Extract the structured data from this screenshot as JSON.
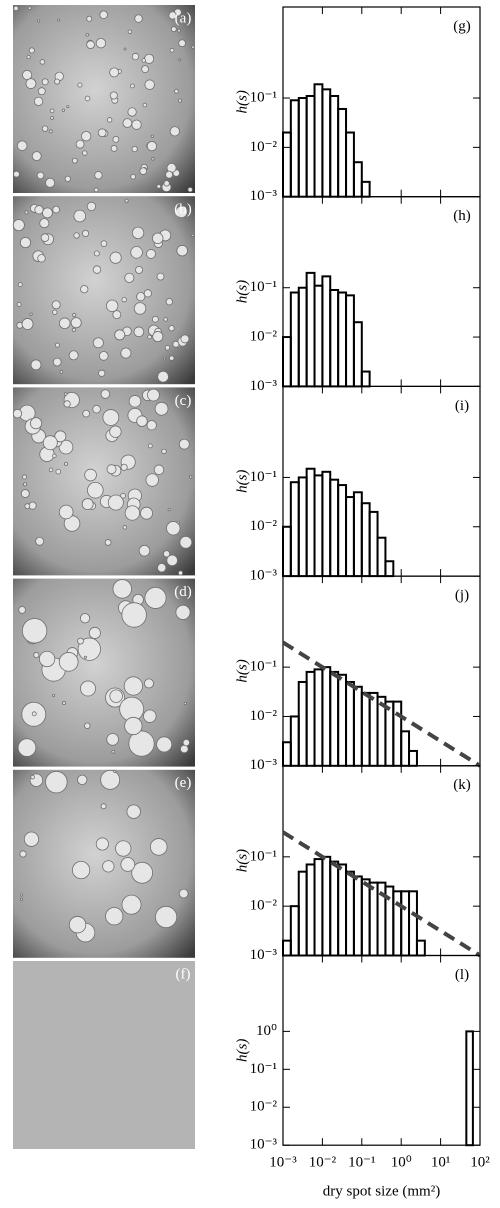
{
  "photos": [
    "(a)",
    "(b)",
    "(c)",
    "(d)",
    "(e)",
    "(f)"
  ],
  "chart_data": [
    {
      "type": "histogram",
      "label": "(g)",
      "ylabel": "h(s)",
      "log_x": true,
      "log_y": true,
      "xlim": [
        0.001,
        100
      ],
      "ylim": [
        0.001,
        7
      ],
      "yticks": [
        {
          "value": 0.001,
          "label": "10⁻³"
        },
        {
          "value": 0.01,
          "label": "10⁻²"
        },
        {
          "value": 0.1,
          "label": "10⁻¹"
        }
      ],
      "bins": [
        0.001,
        0.00158,
        0.00251,
        0.00398,
        0.00631,
        0.01,
        0.0158,
        0.0251,
        0.0398,
        0.0631,
        0.1,
        0.158
      ],
      "values": [
        0.02,
        0.09,
        0.1,
        0.11,
        0.19,
        0.15,
        0.11,
        0.06,
        0.02,
        0.005,
        0.002
      ]
    },
    {
      "type": "histogram",
      "label": "(h)",
      "ylabel": "h(s)",
      "log_x": true,
      "log_y": true,
      "xlim": [
        0.001,
        100
      ],
      "ylim": [
        0.001,
        7
      ],
      "yticks": [
        {
          "value": 0.001,
          "label": "10⁻³"
        },
        {
          "value": 0.01,
          "label": "10⁻²"
        },
        {
          "value": 0.1,
          "label": "10⁻¹"
        }
      ],
      "bins": [
        0.001,
        0.00158,
        0.00251,
        0.00398,
        0.00631,
        0.01,
        0.0158,
        0.0251,
        0.0398,
        0.0631,
        0.1,
        0.158
      ],
      "values": [
        0.01,
        0.08,
        0.1,
        0.2,
        0.11,
        0.17,
        0.09,
        0.08,
        0.07,
        0.02,
        0.002
      ]
    },
    {
      "type": "histogram",
      "label": "(i)",
      "ylabel": "h(s)",
      "log_x": true,
      "log_y": true,
      "xlim": [
        0.001,
        100
      ],
      "ylim": [
        0.001,
        7
      ],
      "yticks": [
        {
          "value": 0.001,
          "label": "10⁻³"
        },
        {
          "value": 0.01,
          "label": "10⁻²"
        },
        {
          "value": 0.1,
          "label": "10⁻¹"
        }
      ],
      "bins": [
        0.001,
        0.00158,
        0.00251,
        0.00398,
        0.00631,
        0.01,
        0.0158,
        0.0251,
        0.0398,
        0.0631,
        0.1,
        0.158,
        0.251,
        0.398,
        0.631
      ],
      "values": [
        0.01,
        0.08,
        0.1,
        0.15,
        0.11,
        0.13,
        0.09,
        0.07,
        0.04,
        0.05,
        0.03,
        0.02,
        0.006,
        0.002
      ]
    },
    {
      "type": "histogram",
      "label": "(j)",
      "ylabel": "h(s)",
      "log_x": true,
      "log_y": true,
      "xlim": [
        0.001,
        100
      ],
      "ylim": [
        0.001,
        7
      ],
      "yticks": [
        {
          "value": 0.001,
          "label": "10⁻³"
        },
        {
          "value": 0.01,
          "label": "10⁻²"
        },
        {
          "value": 0.1,
          "label": "10⁻¹"
        }
      ],
      "bins": [
        0.001,
        0.00158,
        0.00251,
        0.00398,
        0.00631,
        0.01,
        0.0158,
        0.0251,
        0.0398,
        0.0631,
        0.1,
        0.158,
        0.251,
        0.398,
        0.631,
        1,
        1.58,
        2.51
      ],
      "values": [
        0.003,
        0.01,
        0.05,
        0.08,
        0.09,
        0.1,
        0.08,
        0.07,
        0.05,
        0.04,
        0.03,
        0.03,
        0.025,
        0.02,
        0.02,
        0.005,
        0.002
      ],
      "fit": {
        "color": "#444444",
        "x": [
          0.001,
          100
        ],
        "y": [
          0.316,
          0.001
        ]
      }
    },
    {
      "type": "histogram",
      "label": "(k)",
      "ylabel": "h(s)",
      "log_x": true,
      "log_y": true,
      "xlim": [
        0.001,
        100
      ],
      "ylim": [
        0.001,
        7
      ],
      "yticks": [
        {
          "value": 0.001,
          "label": "10⁻³"
        },
        {
          "value": 0.01,
          "label": "10⁻²"
        },
        {
          "value": 0.1,
          "label": "10⁻¹"
        }
      ],
      "bins": [
        0.001,
        0.00158,
        0.00251,
        0.00398,
        0.00631,
        0.01,
        0.0158,
        0.0251,
        0.0398,
        0.0631,
        0.1,
        0.158,
        0.251,
        0.398,
        0.631,
        1,
        1.58,
        2.51,
        3.98
      ],
      "values": [
        0.002,
        0.01,
        0.05,
        0.07,
        0.09,
        0.1,
        0.08,
        0.07,
        0.05,
        0.04,
        0.035,
        0.03,
        0.03,
        0.025,
        0.02,
        0.02,
        0.02,
        0.002
      ],
      "fit": {
        "color": "#444444",
        "x": [
          0.001,
          100
        ],
        "y": [
          0.316,
          0.001
        ]
      }
    },
    {
      "type": "histogram",
      "label": "(l)",
      "ylabel": "h(s)",
      "xlabel": "dry spot size (mm²)",
      "log_x": true,
      "log_y": true,
      "xlim": [
        0.001,
        100
      ],
      "ylim": [
        0.001,
        100
      ],
      "yticks": [
        {
          "value": 0.001,
          "label": "10⁻³"
        },
        {
          "value": 0.01,
          "label": "10⁻²"
        },
        {
          "value": 0.1,
          "label": "10⁻¹"
        },
        {
          "value": 1,
          "label": "10⁰"
        }
      ],
      "xticks": [
        {
          "value": 0.001,
          "label": "10⁻³"
        },
        {
          "value": 0.01,
          "label": "10⁻²"
        },
        {
          "value": 0.1,
          "label": "10⁻¹"
        },
        {
          "value": 1,
          "label": "10⁰"
        },
        {
          "value": 10,
          "label": "10¹"
        },
        {
          "value": 100,
          "label": "10²"
        }
      ],
      "bins": [
        45,
        66
      ],
      "values": [
        1
      ]
    }
  ]
}
